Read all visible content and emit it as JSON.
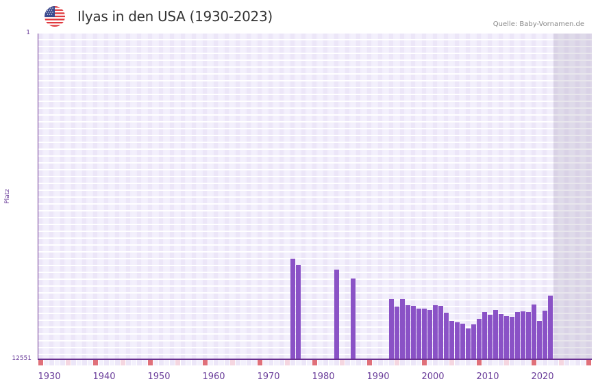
{
  "header": {
    "title": "Ilyas in den USA (1930-2023)",
    "flag_icon": "usa-flag-icon",
    "source": "Quelle: Baby-Vornamen.de"
  },
  "colors": {
    "bar": "#8a52c6",
    "axis": "#6a3090",
    "decade_marker": "#e0707a",
    "half_decade_marker": "#f5d6e0",
    "plot_bg": "#f2eefc",
    "future_shade": "#e2deec"
  },
  "chart_data": {
    "type": "bar",
    "title": "Ilyas in den USA (1930-2023)",
    "xlabel": "",
    "ylabel": "Platz",
    "y_inverted": true,
    "ylim": [
      12551,
      1
    ],
    "y_ticks": [
      "1",
      "12551"
    ],
    "x_ticks": [
      "1930",
      "1940",
      "1950",
      "1960",
      "1970",
      "1980",
      "1990",
      "2000",
      "2010",
      "2020"
    ],
    "xlim": [
      1930,
      2030
    ],
    "grid": true,
    "legend": null,
    "categories": [
      1976,
      1977,
      1984,
      1987,
      1994,
      1995,
      1996,
      1997,
      1998,
      1999,
      2000,
      2001,
      2002,
      2003,
      2004,
      2005,
      2006,
      2007,
      2008,
      2009,
      2010,
      2011,
      2012,
      2013,
      2014,
      2015,
      2016,
      2017,
      2018,
      2019,
      2020,
      2021,
      2022,
      2023
    ],
    "values": [
      8676,
      8913,
      9097,
      9440,
      10230,
      10520,
      10230,
      10467,
      10494,
      10599,
      10599,
      10652,
      10467,
      10494,
      10757,
      11074,
      11126,
      11179,
      11364,
      11206,
      10995,
      10731,
      10836,
      10652,
      10810,
      10889,
      10915,
      10731,
      10705,
      10731,
      10441,
      11074,
      10678,
      10098
    ]
  },
  "axis": {
    "y_top_label": "1",
    "y_bottom_label": "12551",
    "y_title": "Platz",
    "x_labels": [
      "1930",
      "1940",
      "1950",
      "1960",
      "1970",
      "1980",
      "1990",
      "2000",
      "2010",
      "2020"
    ]
  }
}
